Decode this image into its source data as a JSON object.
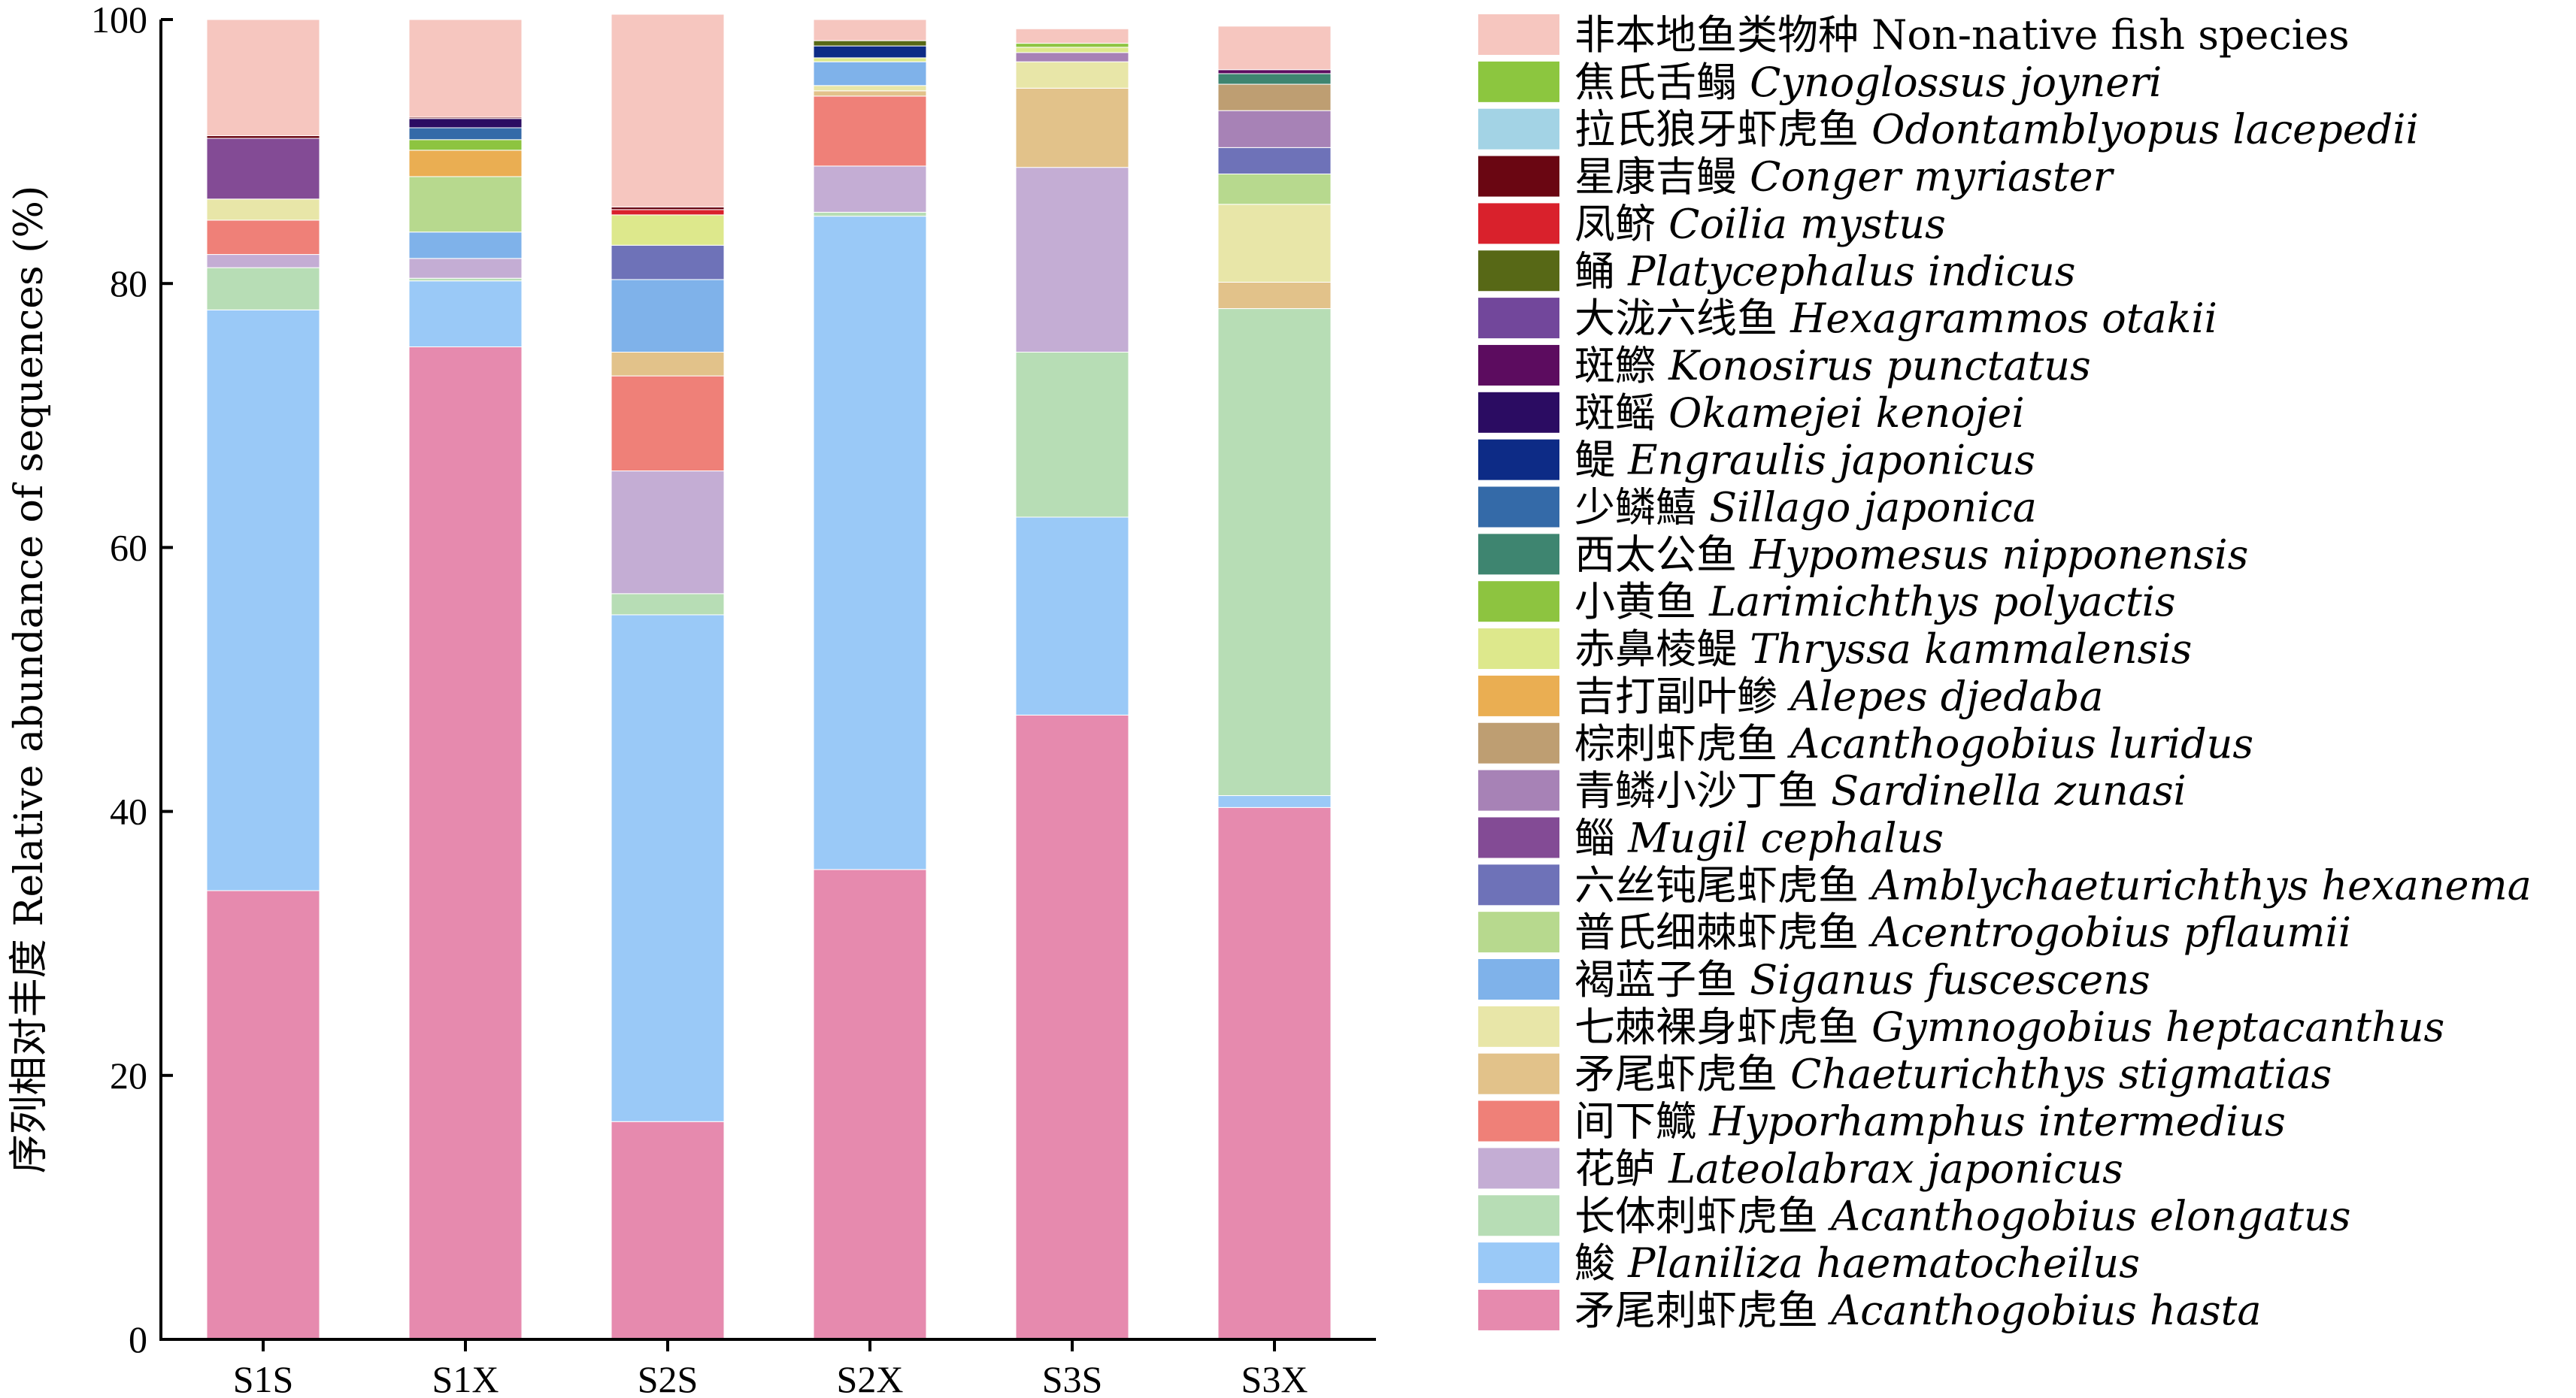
{
  "chart_data": {
    "type": "bar",
    "stacked": true,
    "categories": [
      "S1S",
      "S1X",
      "S2S",
      "S2X",
      "S3S",
      "S3X"
    ],
    "ylabel": "序列相对丰度 Relative abundance of sequences (%)",
    "ylim": [
      0,
      100
    ],
    "yticks": [
      "0",
      "20",
      "40",
      "60",
      "80",
      "100"
    ],
    "grid": false,
    "legend_position": "right",
    "series": [
      {
        "cn": "矛尾刺虾虎鱼",
        "name": "Acanthogobius hasta",
        "color": "#E68AAE",
        "values": [
          34.0,
          75.2,
          16.5,
          35.6,
          47.3,
          40.3
        ]
      },
      {
        "cn": "鮻",
        "name": "Planiliza haematocheilus",
        "color": "#9AC9F7",
        "values": [
          44.0,
          5.0,
          38.4,
          49.5,
          15.0,
          0.9
        ]
      },
      {
        "cn": "长体刺虾虎鱼",
        "name": "Acanthogobius elongatus",
        "color": "#B7DDB5",
        "values": [
          3.2,
          0.2,
          1.6,
          0.3,
          12.5,
          36.9
        ]
      },
      {
        "cn": "花鲈",
        "name": "Lateolabrax japonicus",
        "color": "#C4ADD4",
        "values": [
          1.0,
          1.5,
          9.3,
          3.5,
          14.0,
          0
        ]
      },
      {
        "cn": "间下鱵",
        "name": "Hyporhamphus intermedius",
        "color": "#EF8078",
        "values": [
          2.6,
          0,
          7.2,
          5.3,
          0,
          0
        ]
      },
      {
        "cn": "矛尾虾虎鱼",
        "name": "Chaeturichthys stigmatias",
        "color": "#E2C28A",
        "values": [
          0,
          0,
          1.8,
          0.4,
          6.0,
          2.0
        ]
      },
      {
        "cn": "七棘裸身虾虎鱼",
        "name": "Gymnogobius heptacanthus",
        "color": "#E8E6A8",
        "values": [
          1.6,
          0,
          0,
          0.4,
          2.0,
          5.9
        ]
      },
      {
        "cn": "褐蓝子鱼",
        "name": "Siganus fuscescens",
        "color": "#7FB2EA",
        "values": [
          0,
          2.0,
          5.5,
          1.8,
          0,
          0
        ]
      },
      {
        "cn": "普氏细棘虾虎鱼",
        "name": "Acentrogobius pflaumii",
        "color": "#B7D98E",
        "values": [
          0,
          4.2,
          0,
          0,
          0,
          2.3
        ]
      },
      {
        "cn": "六丝钝尾虾虎鱼",
        "name": "Amblychaeturichthys hexanema",
        "color": "#6E72B8",
        "values": [
          0,
          0,
          2.6,
          0,
          0,
          2.0
        ]
      },
      {
        "cn": "鲻",
        "name": "Mugil cephalus",
        "color": "#834B95",
        "values": [
          4.6,
          0,
          0,
          0,
          0,
          0
        ]
      },
      {
        "cn": "青鳞小沙丁鱼",
        "name": "Sardinella zunasi",
        "color": "#A782B6",
        "values": [
          0,
          0,
          0,
          0,
          0.7,
          2.8
        ]
      },
      {
        "cn": "棕刺虾虎鱼",
        "name": "Acanthogobius luridus",
        "color": "#BE9E72",
        "values": [
          0,
          0,
          0,
          0,
          0,
          2.0
        ]
      },
      {
        "cn": "吉打副叶鲹",
        "name": "Alepes djedaba",
        "color": "#EAAE52",
        "values": [
          0,
          2.0,
          0,
          0,
          0,
          0
        ]
      },
      {
        "cn": "赤鼻棱鳀",
        "name": "Thryssa kammalensis",
        "color": "#DDE88C",
        "values": [
          0,
          0,
          2.3,
          0.3,
          0.4,
          0
        ]
      },
      {
        "cn": "小黄鱼",
        "name": "Larimichthys polyactis",
        "color": "#8DC440",
        "values": [
          0,
          0.8,
          0,
          0,
          0.3,
          0
        ]
      },
      {
        "cn": "西太公鱼",
        "name": "Hypomesus nipponensis",
        "color": "#3E8570",
        "values": [
          0,
          0,
          0,
          0,
          0,
          0.8
        ]
      },
      {
        "cn": "少鳞鱚",
        "name": "Sillago japonica",
        "color": "#346AA8",
        "values": [
          0,
          0.9,
          0,
          0,
          0,
          0
        ]
      },
      {
        "cn": "鳀",
        "name": "Engraulis japonicus",
        "color": "#0D2B86",
        "values": [
          0,
          0,
          0,
          0.9,
          0,
          0
        ]
      },
      {
        "cn": "斑鳐",
        "name": "Okamejei kenojei",
        "color": "#2B0C62",
        "values": [
          0,
          0.7,
          0,
          0,
          0,
          0
        ]
      },
      {
        "cn": "斑鰶",
        "name": "Konosirus punctatus",
        "color": "#5C0C5F",
        "values": [
          0,
          0,
          0,
          0,
          0,
          0.3
        ]
      },
      {
        "cn": "大泷六线鱼",
        "name": "Hexagrammos otakii",
        "color": "#72479B",
        "values": [
          0,
          0,
          0,
          0,
          0,
          0
        ]
      },
      {
        "cn": "鲬",
        "name": "Platycephalus indicus",
        "color": "#576816",
        "values": [
          0,
          0,
          0,
          0.4,
          0,
          0
        ]
      },
      {
        "cn": "凤鲚",
        "name": "Coilia mystus",
        "color": "#D9212C",
        "values": [
          0,
          0,
          0.4,
          0,
          0,
          0
        ]
      },
      {
        "cn": "星康吉鳗",
        "name": "Conger myriaster",
        "color": "#6A0612",
        "values": [
          0.2,
          0.1,
          0.2,
          0,
          0,
          0
        ]
      },
      {
        "cn": "拉氏狼牙虾虎鱼",
        "name": "Odontamblyopus lacepedii",
        "color": "#A3D3E5",
        "values": [
          0,
          0,
          0,
          0,
          0,
          0
        ]
      },
      {
        "cn": "焦氏舌鳎",
        "name": "Cynoglossus joyneri",
        "color": "#8CC63F",
        "values": [
          0,
          0,
          0,
          0,
          0,
          0
        ]
      },
      {
        "cn": "非本地鱼类物种",
        "name": "Non-native fish species",
        "color": "#F6C6BF",
        "values": [
          8.8,
          7.4,
          14.6,
          1.6,
          1.1,
          3.3
        ]
      }
    ]
  }
}
